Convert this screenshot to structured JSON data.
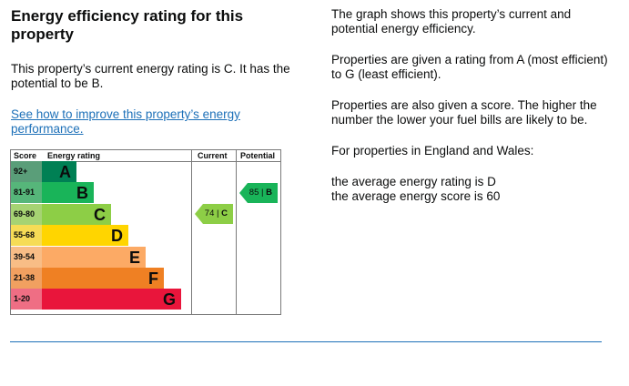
{
  "left": {
    "title": "Energy efficiency rating for this property",
    "current_text": "This property’s current energy rating is C. It has the potential to be B.",
    "improve_link": "See how to improve this property’s energy performance."
  },
  "right": {
    "p1": "The graph shows this property’s current and potential energy efficiency.",
    "p2": "Properties are given a rating from A (most efficient) to G (least efficient).",
    "p3": "Properties are also given a score. The higher the number the lower your fuel bills are likely to be.",
    "p4": "For properties in England and Wales:",
    "p5a": "the average energy rating is D",
    "p5b": "the average energy score is 60"
  },
  "chart_data": {
    "type": "table",
    "headers": {
      "score": "Score",
      "rating": "Energy rating",
      "current": "Current",
      "potential": "Potential"
    },
    "bands": [
      {
        "range": "92+",
        "letter": "A",
        "color": "#008054",
        "score_bg": "#5a9e79"
      },
      {
        "range": "81-91",
        "letter": "B",
        "color": "#19b459",
        "score_bg": "#56b67a"
      },
      {
        "range": "69-80",
        "letter": "C",
        "color": "#8dce46",
        "score_bg": "#a6d373"
      },
      {
        "range": "55-68",
        "letter": "D",
        "color": "#ffd500",
        "score_bg": "#f6dc56"
      },
      {
        "range": "39-54",
        "letter": "E",
        "color": "#fcaa65",
        "score_bg": "#f8bd86"
      },
      {
        "range": "21-38",
        "letter": "F",
        "color": "#ef8023",
        "score_bg": "#f1a060"
      },
      {
        "range": "1-20",
        "letter": "G",
        "color": "#e9153b",
        "score_bg": "#ef6e84"
      }
    ],
    "current": {
      "score": "74",
      "letter": "C",
      "value": 74
    },
    "potential": {
      "score": "85",
      "letter": "B",
      "value": 85
    }
  }
}
